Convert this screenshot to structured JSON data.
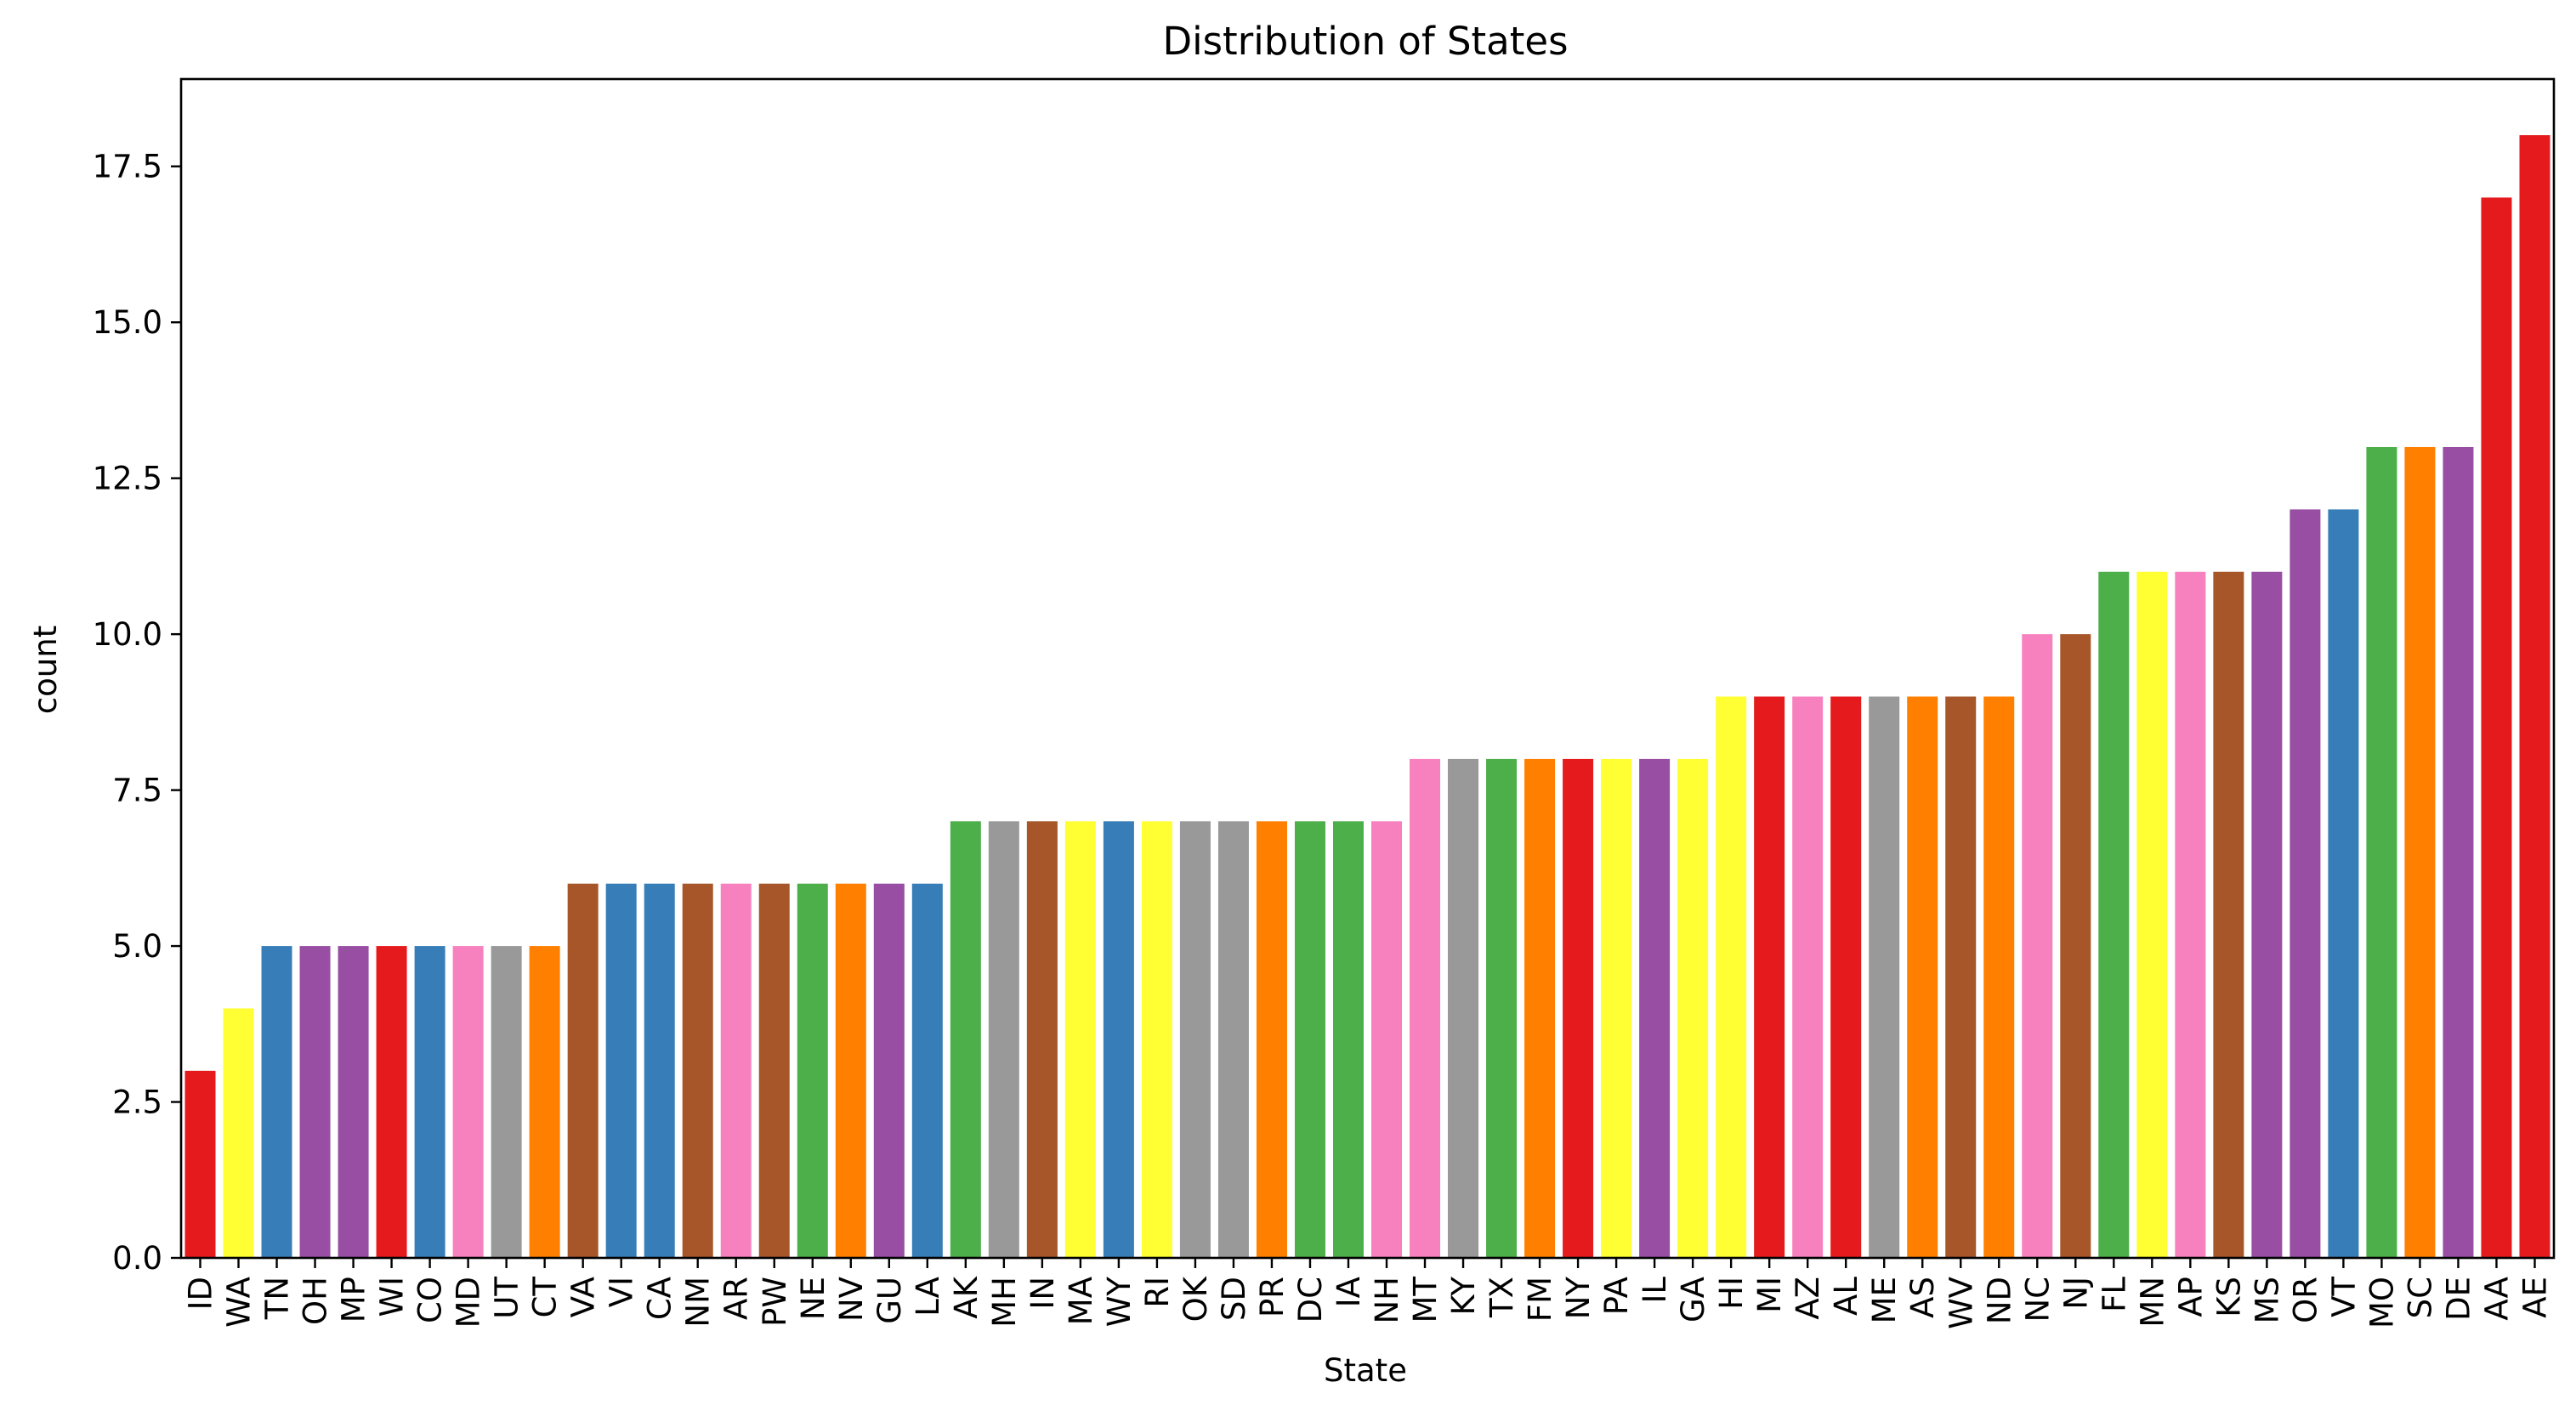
{
  "chart_data": {
    "type": "bar",
    "title": "Distribution of States",
    "xlabel": "State",
    "ylabel": "count",
    "ylim": [
      0,
      18.9
    ],
    "yticks": [
      "0.0",
      "2.5",
      "5.0",
      "7.5",
      "10.0",
      "12.5",
      "15.0",
      "17.5"
    ],
    "grid": false,
    "categories": [
      "ID",
      "WA",
      "TN",
      "OH",
      "MP",
      "WI",
      "CO",
      "MD",
      "UT",
      "CT",
      "VA",
      "VI",
      "CA",
      "NM",
      "AR",
      "PW",
      "NE",
      "NV",
      "GU",
      "LA",
      "AK",
      "MH",
      "IN",
      "MA",
      "WY",
      "RI",
      "OK",
      "SD",
      "PR",
      "DC",
      "IA",
      "NH",
      "MT",
      "KY",
      "TX",
      "FM",
      "NY",
      "PA",
      "IL",
      "GA",
      "HI",
      "MI",
      "AZ",
      "AL",
      "ME",
      "AS",
      "WV",
      "ND",
      "NC",
      "NJ",
      "FL",
      "MN",
      "AP",
      "KS",
      "MS",
      "OR",
      "VT",
      "MO",
      "SC",
      "DE",
      "AA",
      "AE"
    ],
    "values": [
      3,
      4,
      5,
      5,
      5,
      5,
      5,
      5,
      5,
      5,
      6,
      6,
      6,
      6,
      6,
      6,
      6,
      6,
      6,
      6,
      7,
      7,
      7,
      7,
      7,
      7,
      7,
      7,
      7,
      7,
      7,
      7,
      8,
      8,
      8,
      8,
      8,
      8,
      8,
      8,
      9,
      9,
      9,
      9,
      9,
      9,
      9,
      9,
      10,
      10,
      11,
      11,
      11,
      11,
      11,
      12,
      12,
      13,
      13,
      13,
      17,
      18
    ],
    "palette": [
      "#e41a1c",
      "#ffff33",
      "#377eb8",
      "#984ea3",
      "#984ea3",
      "#e41a1c",
      "#377eb8",
      "#f781bf",
      "#999999",
      "#ff7f00",
      "#a65628",
      "#377eb8",
      "#377eb8",
      "#a65628",
      "#f781bf",
      "#a65628",
      "#4daf4a",
      "#ff7f00",
      "#984ea3",
      "#377eb8",
      "#4daf4a",
      "#999999",
      "#a65628",
      "#ffff33",
      "#377eb8",
      "#ffff33",
      "#999999",
      "#999999",
      "#ff7f00",
      "#4daf4a",
      "#4daf4a",
      "#f781bf",
      "#f781bf",
      "#999999",
      "#4daf4a",
      "#ff7f00",
      "#e41a1c",
      "#ffff33",
      "#984ea3",
      "#ffff33",
      "#ffff33",
      "#e41a1c",
      "#f781bf",
      "#e41a1c",
      "#999999",
      "#ff7f00",
      "#a65628",
      "#ff7f00",
      "#f781bf",
      "#a65628",
      "#4daf4a",
      "#ffff33",
      "#f781bf",
      "#a65628",
      "#984ea3",
      "#984ea3",
      "#377eb8",
      "#4daf4a",
      "#ff7f00",
      "#984ea3",
      "#e41a1c",
      "#e41a1c"
    ]
  }
}
